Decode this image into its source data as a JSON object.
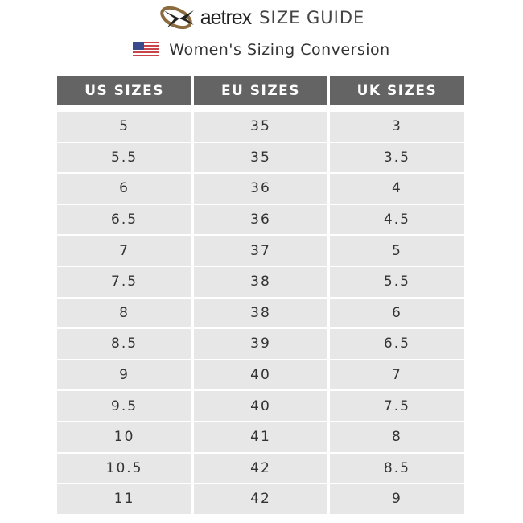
{
  "header": {
    "brand": "aetrex",
    "title": "SIZE GUIDE",
    "subtitle": "Women's Sizing Conversion",
    "flag_icon": "us-flag-icon"
  },
  "colors": {
    "header_bg": "#646464",
    "row_bg": "#e7e7e7",
    "logo_ring": "#8a6a3e"
  },
  "table": {
    "columns": [
      "US SIZES",
      "EU SIZES",
      "UK SIZES"
    ],
    "rows": [
      [
        "5",
        "35",
        "3"
      ],
      [
        "5.5",
        "35",
        "3.5"
      ],
      [
        "6",
        "36",
        "4"
      ],
      [
        "6.5",
        "36",
        "4.5"
      ],
      [
        "7",
        "37",
        "5"
      ],
      [
        "7.5",
        "38",
        "5.5"
      ],
      [
        "8",
        "38",
        "6"
      ],
      [
        "8.5",
        "39",
        "6.5"
      ],
      [
        "9",
        "40",
        "7"
      ],
      [
        "9.5",
        "40",
        "7.5"
      ],
      [
        "10",
        "41",
        "8"
      ],
      [
        "10.5",
        "42",
        "8.5"
      ],
      [
        "11",
        "42",
        "9"
      ]
    ]
  }
}
